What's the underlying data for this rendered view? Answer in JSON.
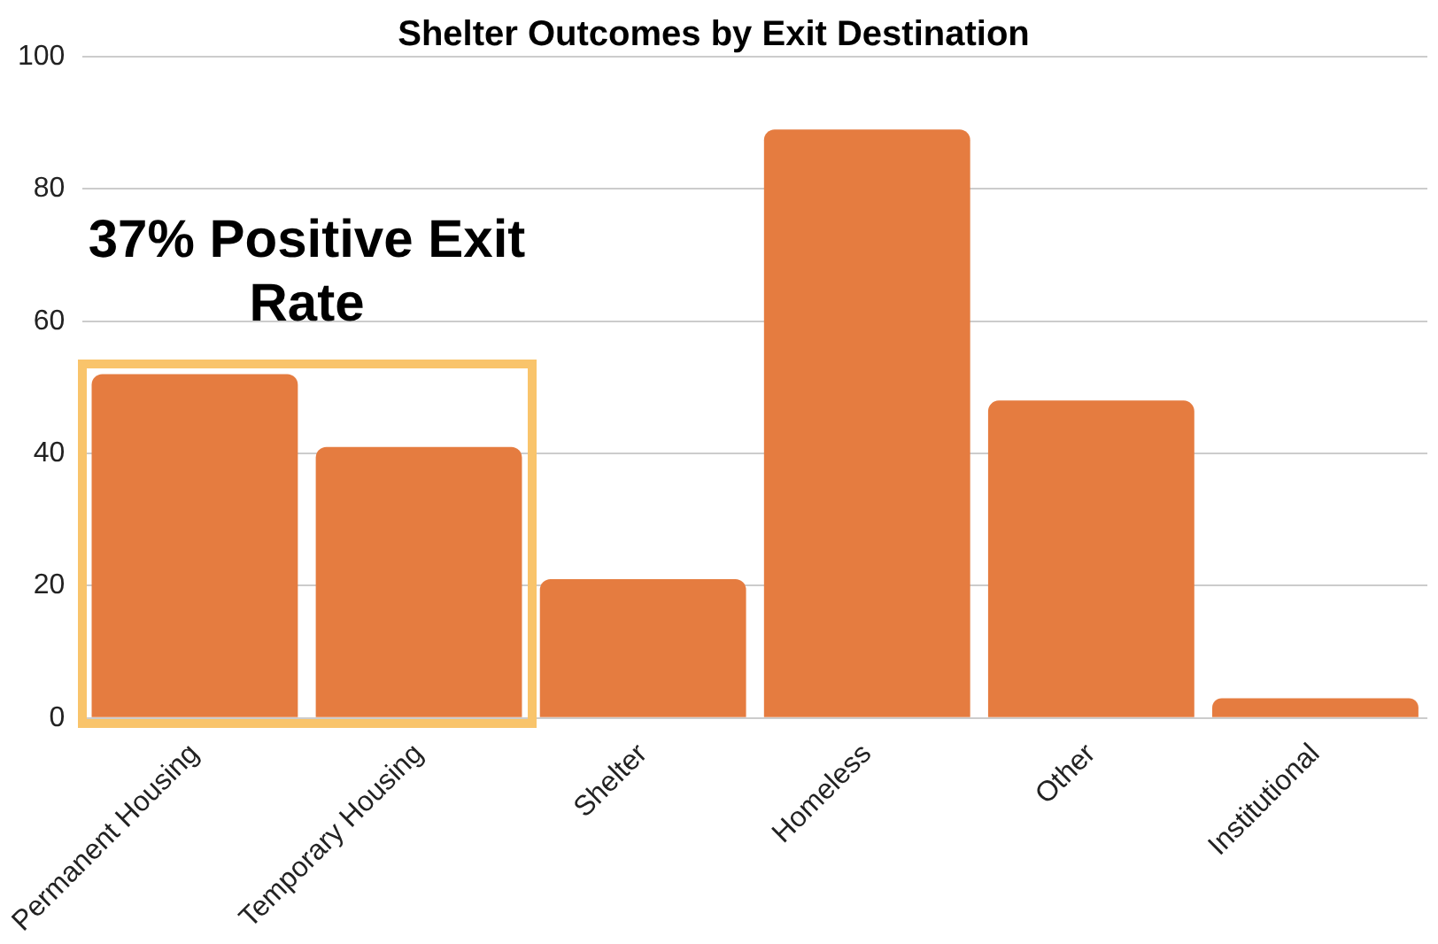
{
  "chart_data": {
    "type": "bar",
    "title": "Shelter Outcomes by Exit Destination",
    "categories": [
      "Permanent Housing",
      "Temporary Housing",
      "Shelter",
      "Homeless",
      "Other",
      "Institutional"
    ],
    "values": [
      52,
      41,
      21,
      89,
      48,
      3
    ],
    "color": "#e57c40",
    "ylim": [
      0,
      100
    ],
    "yticks": [
      0,
      20,
      40,
      60,
      80,
      100
    ],
    "grid": "y",
    "annotations": [
      "37% Positive Exit Rate"
    ]
  }
}
